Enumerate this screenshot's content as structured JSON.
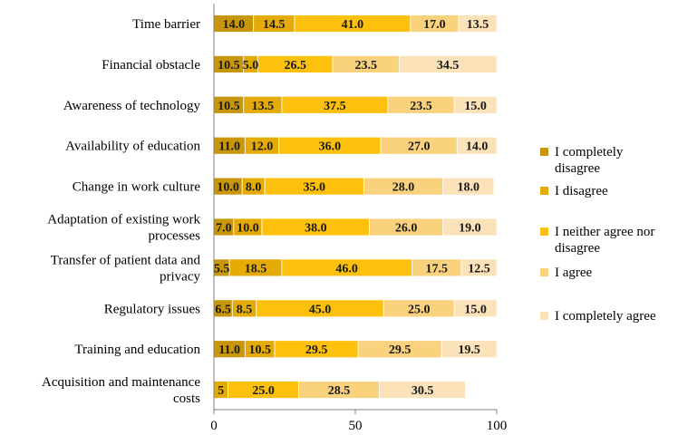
{
  "chart_data": {
    "type": "bar",
    "orientation": "horizontal",
    "stacked": true,
    "categories": [
      "Time barrier",
      "Financial obstacle",
      "Awareness of technology",
      "Availability of education",
      "Change in work culture",
      "Adaptation of existing work processes",
      "Transfer of patient data and privacy",
      "Regulatory issues",
      "Training and education",
      "Acquisition and maintenance costs"
    ],
    "category_lines": [
      [
        "Time barrier"
      ],
      [
        "Financial obstacle"
      ],
      [
        "Awareness of technology"
      ],
      [
        "Availability of education"
      ],
      [
        "Change in work culture"
      ],
      [
        "Adaptation of existing work",
        "processes"
      ],
      [
        "Transfer of patient data and",
        "privacy"
      ],
      [
        "Regulatory issues"
      ],
      [
        "Training and education"
      ],
      [
        "Acquisition and maintenance",
        "costs"
      ]
    ],
    "series": [
      {
        "name": "I completely disagree",
        "color": "#C8960A",
        "values": [
          14.0,
          10.5,
          10.5,
          11.0,
          10.0,
          7.0,
          5.5,
          6.5,
          11.0,
          0
        ],
        "labels": [
          "14.0",
          "10.5",
          "10.5",
          "11.0",
          "10.0",
          "7.0",
          "5.5",
          "6.5",
          "11.0",
          ""
        ]
      },
      {
        "name": "I disagree",
        "color": "#E4AB06",
        "values": [
          14.5,
          5.0,
          13.5,
          12.0,
          8.0,
          10.0,
          18.5,
          8.5,
          10.5,
          5
        ],
        "labels": [
          "14.5",
          "5.0",
          "13.5",
          "12.0",
          "8.0",
          "10.0",
          "18.5",
          "8.5",
          "10.5",
          "5"
        ]
      },
      {
        "name": "I neither agree nor disagree",
        "color": "#FDC10D",
        "values": [
          41.0,
          26.5,
          37.5,
          36.0,
          35.0,
          38.0,
          46.0,
          45.0,
          29.5,
          25.0
        ],
        "labels": [
          "41.0",
          "26.5",
          "37.5",
          "36.0",
          "35.0",
          "38.0",
          "46.0",
          "45.0",
          "29.5",
          "25.0"
        ]
      },
      {
        "name": "I agree",
        "color": "#FAD17D",
        "values": [
          17.0,
          23.5,
          23.5,
          27.0,
          28.0,
          26.0,
          17.5,
          25.0,
          29.5,
          28.5
        ],
        "labels": [
          "17.0",
          "23.5",
          "23.5",
          "27.0",
          "28.0",
          "26.0",
          "17.5",
          "25.0",
          "29.5",
          "28.5"
        ]
      },
      {
        "name": "I completely agree",
        "color": "#FCE2B8",
        "values": [
          13.5,
          34.5,
          15.0,
          14.0,
          18.0,
          19.0,
          12.5,
          15.0,
          19.5,
          30.5
        ],
        "labels": [
          "13.5",
          "34.5",
          "15.0",
          "14.0",
          "18.0",
          "19.0",
          "12.5",
          "15.0",
          "19.5",
          "30.5"
        ]
      }
    ],
    "legend_lines": [
      [
        "I completely",
        "disagree"
      ],
      [
        "I disagree"
      ],
      [
        "I neither agree nor",
        "disagree"
      ],
      [
        "I agree"
      ],
      [
        "I completely agree"
      ]
    ],
    "xlim": [
      0,
      100
    ],
    "xticks": [
      "0",
      "50",
      "100"
    ],
    "grid": false,
    "legend_position": "right"
  }
}
